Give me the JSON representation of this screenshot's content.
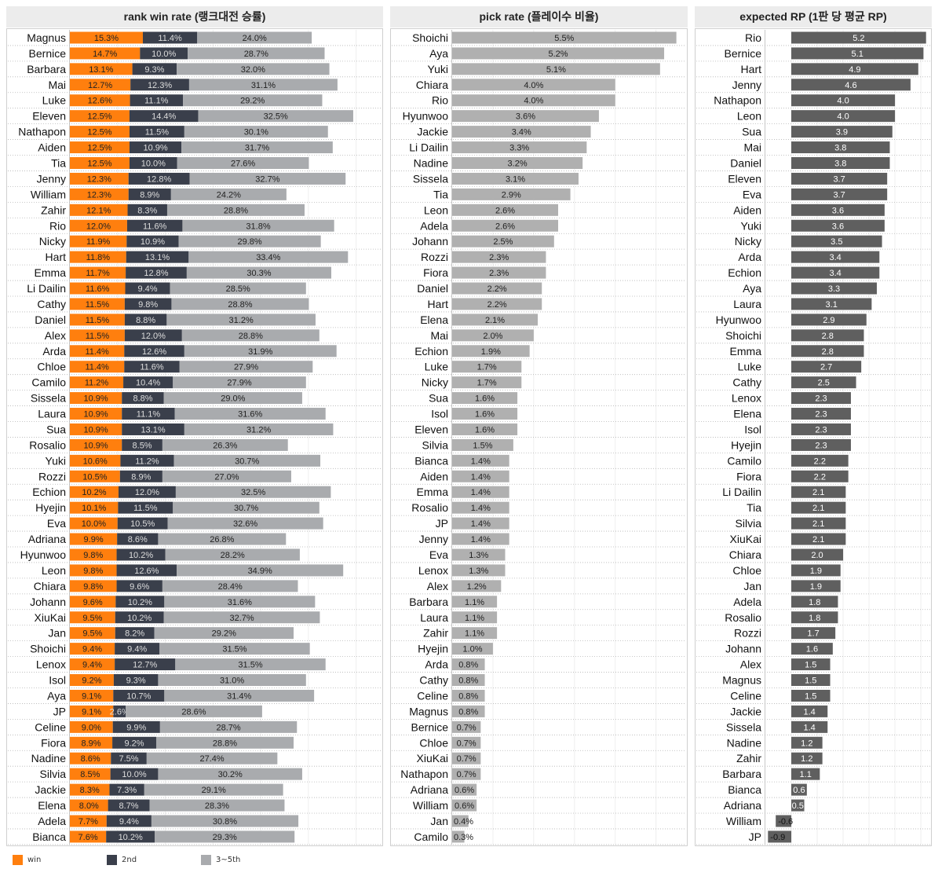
{
  "chart_data": [
    {
      "type": "bar",
      "stacked": true,
      "orientation": "horizontal",
      "title": "rank win rate (랭크대전 승률)",
      "categories": [
        "Magnus",
        "Bernice",
        "Barbara",
        "Mai",
        "Luke",
        "Eleven",
        "Nathapon",
        "Aiden",
        "Tia",
        "Jenny",
        "William",
        "Zahir",
        "Rio",
        "Nicky",
        "Hart",
        "Emma",
        "Li Dailin",
        "Cathy",
        "Daniel",
        "Alex",
        "Arda",
        "Chloe",
        "Camilo",
        "Sissela",
        "Laura",
        "Sua",
        "Rosalio",
        "Yuki",
        "Rozzi",
        "Echion",
        "Hyejin",
        "Eva",
        "Adriana",
        "Hyunwoo",
        "Leon",
        "Chiara",
        "Johann",
        "XiuKai",
        "Jan",
        "Shoichi",
        "Lenox",
        "Isol",
        "Aya",
        "JP",
        "Celine",
        "Fiora",
        "Nadine",
        "Silvia",
        "Jackie",
        "Elena",
        "Adela",
        "Bianca"
      ],
      "series": [
        {
          "name": "win",
          "color": "#ff7f0e",
          "values": [
            15.3,
            14.7,
            13.1,
            12.7,
            12.6,
            12.5,
            12.5,
            12.5,
            12.5,
            12.3,
            12.3,
            12.1,
            12.0,
            11.9,
            11.8,
            11.7,
            11.6,
            11.5,
            11.5,
            11.5,
            11.4,
            11.4,
            11.2,
            10.9,
            10.9,
            10.9,
            10.9,
            10.6,
            10.5,
            10.2,
            10.1,
            10.0,
            9.9,
            9.8,
            9.8,
            9.8,
            9.6,
            9.5,
            9.5,
            9.4,
            9.4,
            9.2,
            9.1,
            9.1,
            9.0,
            8.9,
            8.6,
            8.5,
            8.3,
            8.0,
            7.7,
            7.6
          ]
        },
        {
          "name": "2nd",
          "color": "#3a3f4b",
          "values": [
            11.4,
            10.0,
            9.3,
            12.3,
            11.1,
            14.4,
            11.5,
            10.9,
            10.0,
            12.8,
            8.9,
            8.3,
            11.6,
            10.9,
            13.1,
            12.8,
            9.4,
            9.8,
            8.8,
            12.0,
            12.6,
            11.6,
            10.4,
            8.8,
            11.1,
            13.1,
            8.5,
            11.2,
            8.9,
            12.0,
            11.5,
            10.5,
            8.6,
            10.2,
            12.6,
            9.6,
            10.2,
            10.2,
            8.2,
            9.4,
            12.7,
            9.3,
            10.7,
            2.6,
            9.9,
            9.2,
            7.5,
            10.0,
            7.3,
            8.7,
            9.4,
            10.2
          ]
        },
        {
          "name": "3~5th",
          "color": "#a9abae",
          "values": [
            24.0,
            28.7,
            32.0,
            31.1,
            29.2,
            32.5,
            30.1,
            31.7,
            27.6,
            32.7,
            24.2,
            28.8,
            31.8,
            29.8,
            33.4,
            30.3,
            28.5,
            28.8,
            31.2,
            28.8,
            31.9,
            27.9,
            27.9,
            29.0,
            31.6,
            31.2,
            26.3,
            30.7,
            27.0,
            32.5,
            30.7,
            32.6,
            26.8,
            28.2,
            34.9,
            28.4,
            31.6,
            32.7,
            29.2,
            31.5,
            31.5,
            31.0,
            31.4,
            28.6,
            28.7,
            28.8,
            27.4,
            30.2,
            29.1,
            28.3,
            30.8,
            29.3
          ]
        }
      ],
      "xlim": [
        0,
        65
      ],
      "legend": "bottom-left"
    },
    {
      "type": "bar",
      "orientation": "horizontal",
      "title": "pick rate (플레이수 비율)",
      "color": "#b0b0b0",
      "categories": [
        "Shoichi",
        "Aya",
        "Yuki",
        "Chiara",
        "Rio",
        "Hyunwoo",
        "Jackie",
        "Li Dailin",
        "Nadine",
        "Sissela",
        "Tia",
        "Leon",
        "Adela",
        "Johann",
        "Rozzi",
        "Fiora",
        "Daniel",
        "Hart",
        "Elena",
        "Mai",
        "Echion",
        "Luke",
        "Nicky",
        "Sua",
        "Isol",
        "Eleven",
        "Silvia",
        "Bianca",
        "Aiden",
        "Emma",
        "Rosalio",
        "JP",
        "Jenny",
        "Eva",
        "Lenox",
        "Alex",
        "Barbara",
        "Laura",
        "Zahir",
        "Hyejin",
        "Arda",
        "Cathy",
        "Celine",
        "Magnus",
        "Bernice",
        "Chloe",
        "XiuKai",
        "Nathapon",
        "Adriana",
        "William",
        "Jan",
        "Camilo"
      ],
      "values": [
        5.5,
        5.2,
        5.1,
        4.0,
        4.0,
        3.6,
        3.4,
        3.3,
        3.2,
        3.1,
        2.9,
        2.6,
        2.6,
        2.5,
        2.3,
        2.3,
        2.2,
        2.2,
        2.1,
        2.0,
        1.9,
        1.7,
        1.7,
        1.6,
        1.6,
        1.6,
        1.5,
        1.4,
        1.4,
        1.4,
        1.4,
        1.4,
        1.4,
        1.3,
        1.3,
        1.2,
        1.1,
        1.1,
        1.1,
        1.0,
        0.8,
        0.8,
        0.8,
        0.8,
        0.7,
        0.7,
        0.7,
        0.7,
        0.6,
        0.6,
        0.4,
        0.3
      ],
      "value_suffix": "%",
      "xlim": [
        0,
        5.7
      ]
    },
    {
      "type": "bar",
      "orientation": "horizontal",
      "title": "expected RP (1판 당 평균 RP)",
      "color": "#5f5f5f",
      "categories": [
        "Rio",
        "Bernice",
        "Hart",
        "Jenny",
        "Nathapon",
        "Leon",
        "Sua",
        "Mai",
        "Daniel",
        "Eleven",
        "Eva",
        "Aiden",
        "Yuki",
        "Nicky",
        "Arda",
        "Echion",
        "Aya",
        "Laura",
        "Hyunwoo",
        "Shoichi",
        "Emma",
        "Luke",
        "Cathy",
        "Lenox",
        "Elena",
        "Isol",
        "Hyejin",
        "Camilo",
        "Fiora",
        "Li Dailin",
        "Tia",
        "Silvia",
        "XiuKai",
        "Chiara",
        "Chloe",
        "Jan",
        "Adela",
        "Rosalio",
        "Rozzi",
        "Johann",
        "Alex",
        "Magnus",
        "Celine",
        "Jackie",
        "Sissela",
        "Nadine",
        "Zahir",
        "Barbara",
        "Bianca",
        "Adriana",
        "William",
        "JP"
      ],
      "values": [
        5.2,
        5.1,
        4.9,
        4.6,
        4.0,
        4.0,
        3.9,
        3.8,
        3.8,
        3.7,
        3.7,
        3.6,
        3.6,
        3.5,
        3.4,
        3.4,
        3.3,
        3.1,
        2.9,
        2.8,
        2.8,
        2.7,
        2.5,
        2.3,
        2.3,
        2.3,
        2.3,
        2.2,
        2.2,
        2.1,
        2.1,
        2.1,
        2.1,
        2.0,
        1.9,
        1.9,
        1.8,
        1.8,
        1.7,
        1.6,
        1.5,
        1.5,
        1.5,
        1.4,
        1.4,
        1.2,
        1.2,
        1.1,
        0.6,
        0.5,
        -0.6,
        -0.9
      ],
      "value_suffix": "",
      "xlim": [
        -1.0,
        5.3
      ]
    }
  ]
}
